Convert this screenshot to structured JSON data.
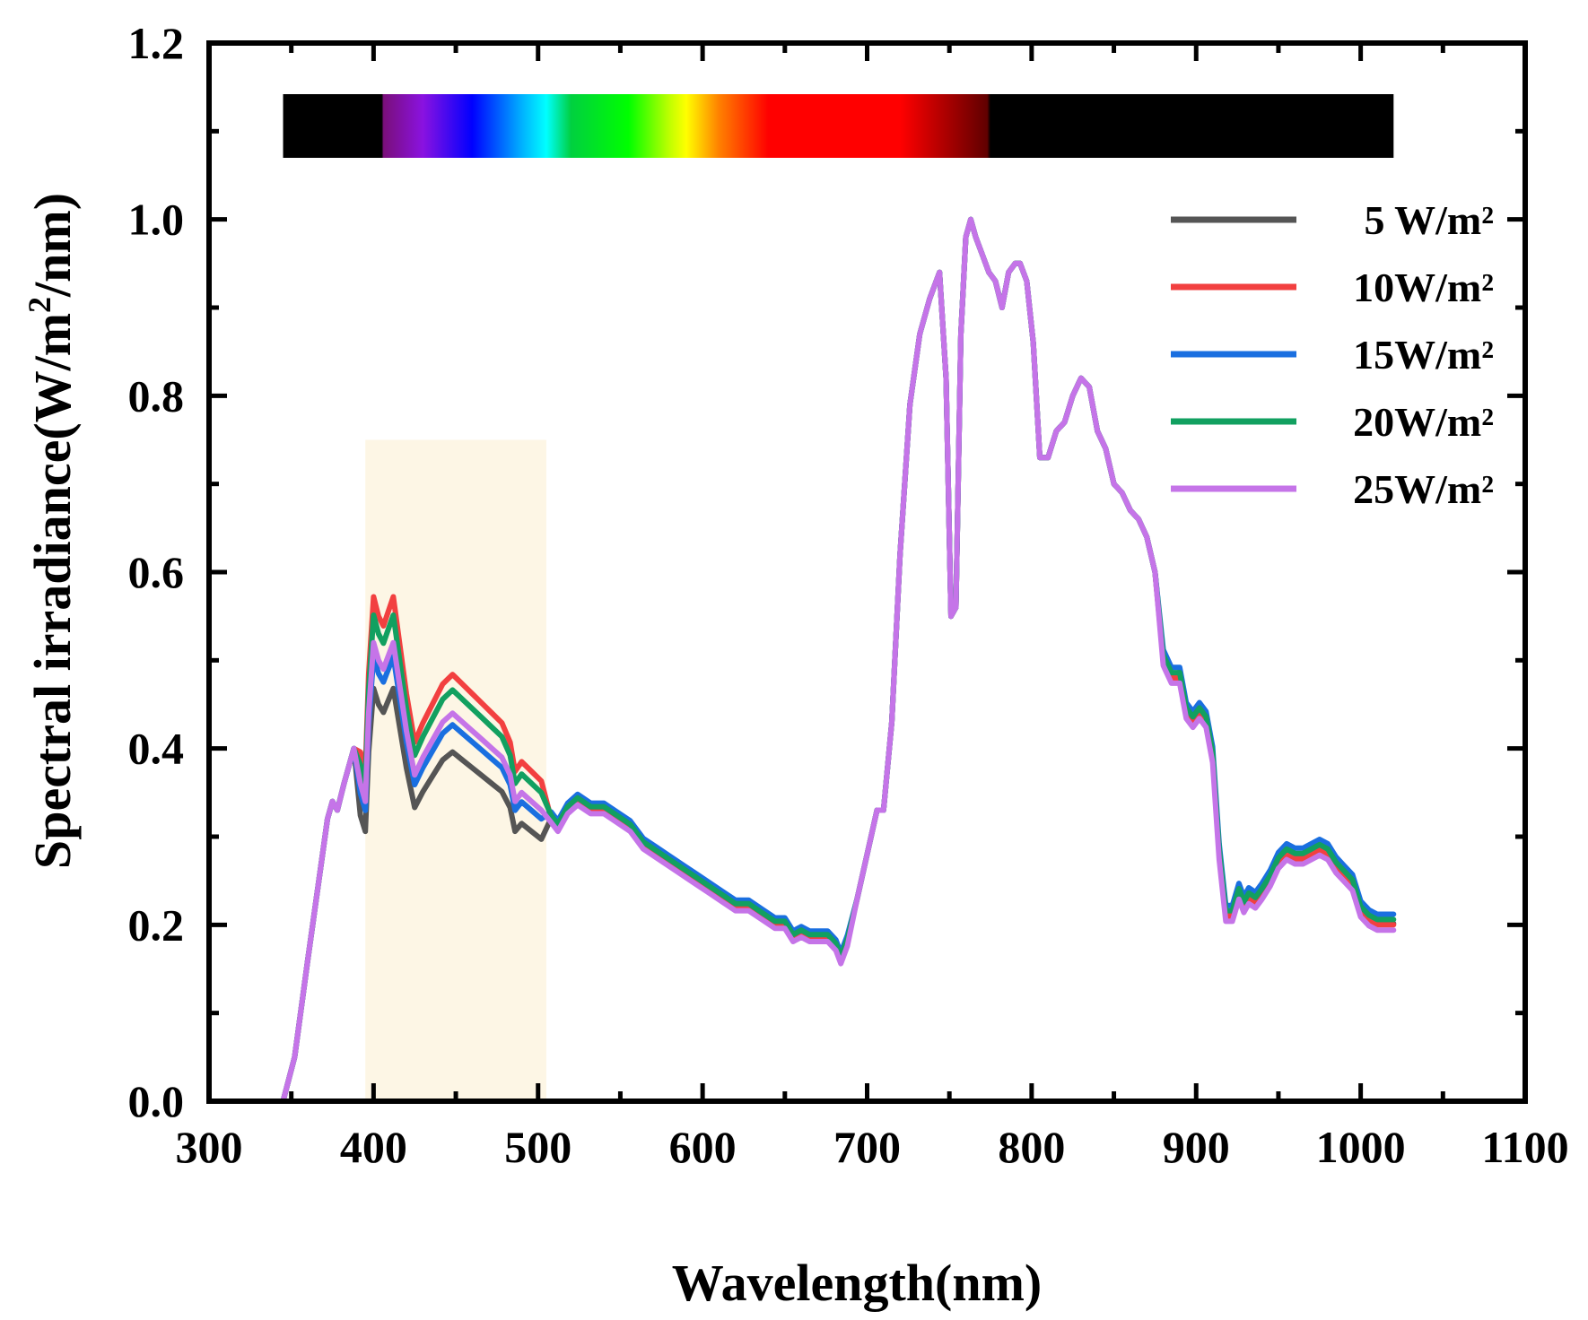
{
  "chart_data": {
    "type": "line",
    "title": "",
    "xlabel": "Wavelength(nm)",
    "ylabel_main": "Spectral irradiance(W/m",
    "ylabel_sup": "2",
    "ylabel_tail": "/nm)",
    "xlim": [
      300,
      1100
    ],
    "ylim": [
      0,
      1.2
    ],
    "x_ticks": [
      300,
      400,
      500,
      600,
      700,
      800,
      900,
      1000,
      1100
    ],
    "x_tick_labels": [
      "300",
      "400",
      "500",
      "600",
      "700",
      "800",
      "900",
      "1000",
      "1100"
    ],
    "y_ticks": [
      0,
      0.2,
      0.4,
      0.6,
      0.8,
      1.0,
      1.2
    ],
    "y_tick_labels": [
      "0.0",
      "0.2",
      "0.4",
      "0.6",
      "0.8",
      "1.0",
      "1.2"
    ],
    "grid": false,
    "legend_position": "top-right",
    "highlight_band_nm": [
      395,
      505
    ],
    "spectrum_bar": {
      "range_nm": [
        345,
        1020
      ],
      "stops": [
        {
          "nm": 345,
          "color": "#000000"
        },
        {
          "nm": 405,
          "color": "#000000"
        },
        {
          "nm": 406,
          "color": "#7a0f7a"
        },
        {
          "nm": 430,
          "color": "#8a12e0"
        },
        {
          "nm": 460,
          "color": "#0000ff"
        },
        {
          "nm": 490,
          "color": "#00b0ff"
        },
        {
          "nm": 505,
          "color": "#00ffff"
        },
        {
          "nm": 520,
          "color": "#00d040"
        },
        {
          "nm": 555,
          "color": "#00ff00"
        },
        {
          "nm": 580,
          "color": "#c0ff00"
        },
        {
          "nm": 590,
          "color": "#ffff00"
        },
        {
          "nm": 610,
          "color": "#ff8000"
        },
        {
          "nm": 640,
          "color": "#ff0000"
        },
        {
          "nm": 720,
          "color": "#ff0000"
        },
        {
          "nm": 773,
          "color": "#600000"
        },
        {
          "nm": 775,
          "color": "#000000"
        },
        {
          "nm": 1020,
          "color": "#000000"
        }
      ]
    },
    "base_spectrum": {
      "x": [
        345,
        352,
        360,
        372,
        375,
        378,
        382,
        388,
        392,
        395,
        397,
        400,
        403,
        406,
        408,
        412,
        416,
        420,
        425,
        430,
        436,
        442,
        448,
        454,
        460,
        466,
        472,
        478,
        483,
        486,
        490,
        496,
        502,
        508,
        512,
        518,
        524,
        532,
        540,
        548,
        556,
        564,
        572,
        580,
        588,
        596,
        604,
        612,
        620,
        628,
        636,
        644,
        650,
        655,
        660,
        665,
        670,
        676,
        681,
        684,
        688,
        694,
        700,
        706,
        710,
        715,
        720,
        726,
        732,
        738,
        744,
        748,
        751,
        754,
        757,
        760,
        763,
        766,
        770,
        774,
        778,
        782,
        786,
        790,
        793,
        797,
        801,
        805,
        810,
        815,
        820,
        825,
        830,
        835,
        840,
        845,
        850,
        855,
        860,
        865,
        870,
        875,
        880,
        885,
        890,
        894,
        898,
        902,
        906,
        910,
        914,
        918,
        922,
        926,
        929,
        932,
        936,
        940,
        945,
        950,
        955,
        960,
        965,
        970,
        975,
        980,
        985,
        990,
        995,
        1000,
        1005,
        1010,
        1015,
        1020
      ],
      "y": [
        0.0,
        0.05,
        0.16,
        0.32,
        0.34,
        0.33,
        0.36,
        0.4,
        0.36,
        0.34,
        0.44,
        0.52,
        0.5,
        0.49,
        0.5,
        0.52,
        0.47,
        0.42,
        0.37,
        0.39,
        0.41,
        0.43,
        0.44,
        0.43,
        0.42,
        0.41,
        0.4,
        0.39,
        0.37,
        0.34,
        0.35,
        0.34,
        0.33,
        0.32,
        0.31,
        0.33,
        0.34,
        0.33,
        0.33,
        0.32,
        0.31,
        0.29,
        0.28,
        0.27,
        0.26,
        0.25,
        0.24,
        0.23,
        0.22,
        0.22,
        0.21,
        0.2,
        0.2,
        0.185,
        0.19,
        0.185,
        0.185,
        0.185,
        0.175,
        0.16,
        0.18,
        0.23,
        0.28,
        0.33,
        0.33,
        0.43,
        0.62,
        0.79,
        0.87,
        0.91,
        0.94,
        0.82,
        0.55,
        0.56,
        0.87,
        0.98,
        1.0,
        0.98,
        0.96,
        0.94,
        0.93,
        0.9,
        0.94,
        0.95,
        0.95,
        0.93,
        0.86,
        0.73,
        0.73,
        0.76,
        0.77,
        0.8,
        0.82,
        0.81,
        0.76,
        0.74,
        0.7,
        0.69,
        0.67,
        0.66,
        0.64,
        0.6,
        0.5,
        0.48,
        0.48,
        0.44,
        0.43,
        0.44,
        0.43,
        0.39,
        0.28,
        0.21,
        0.21,
        0.235,
        0.22,
        0.23,
        0.225,
        0.235,
        0.25,
        0.27,
        0.28,
        0.275,
        0.275,
        0.28,
        0.285,
        0.28,
        0.265,
        0.255,
        0.245,
        0.215,
        0.205,
        0.2,
        0.2,
        0.2
      ]
    },
    "series": [
      {
        "name": "5 W/m²",
        "color": "#555555",
        "scale_blue": 0.9,
        "scale_red": 1.0,
        "shift": 0.001
      },
      {
        "name": "10W/m²",
        "color": "#f24040",
        "scale_blue": 1.1,
        "scale_red": 1.0,
        "shift": 0.0
      },
      {
        "name": "15W/m²",
        "color": "#1a6fe0",
        "scale_blue": 0.97,
        "scale_red": 1.0,
        "shift": 0.008
      },
      {
        "name": "20W/m²",
        "color": "#12a060",
        "scale_blue": 1.06,
        "scale_red": 1.0,
        "shift": 0.004
      },
      {
        "name": "25W/m²",
        "color": "#c574e8",
        "scale_blue": 1.0,
        "scale_red": 1.0,
        "shift": -0.004
      }
    ]
  }
}
